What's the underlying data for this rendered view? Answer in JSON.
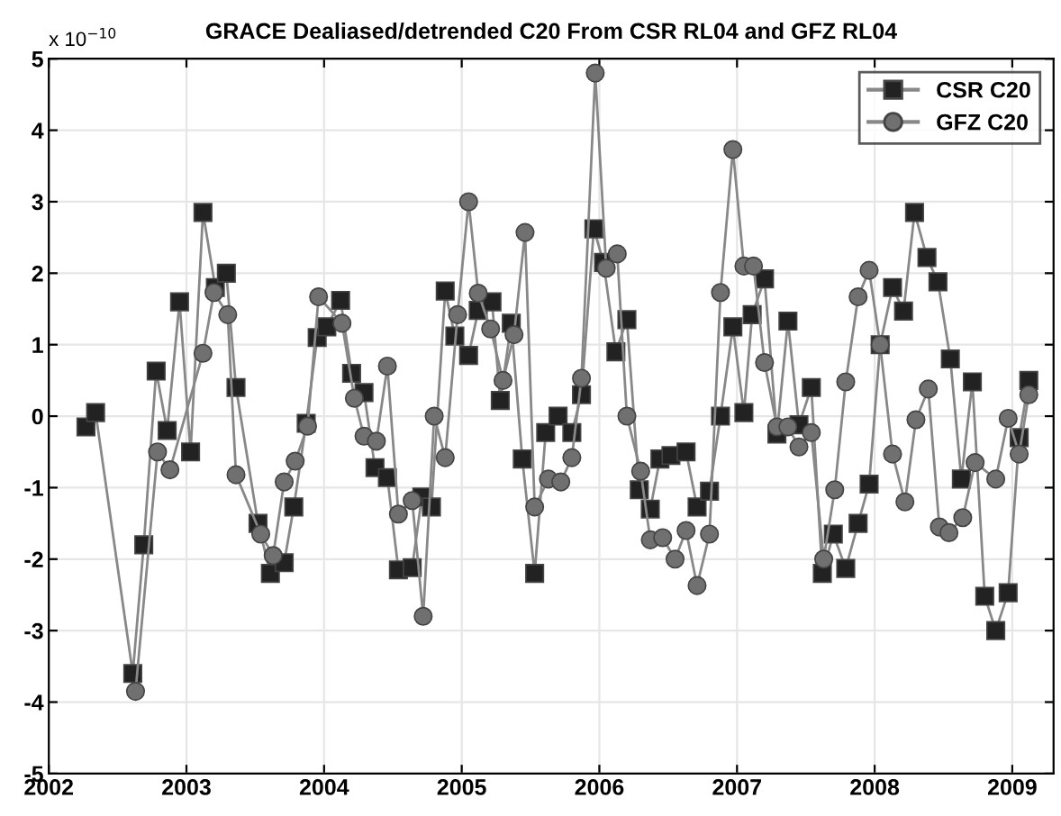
{
  "chart_data": {
    "type": "line",
    "title": "GRACE Dealiased/detrended C20 From CSR RL04 and GFZ RL04",
    "annotations": [
      "x 10$^{−10}$"
    ],
    "xlim": [
      2002,
      2009.3
    ],
    "xticks": [
      2002,
      2003,
      2004,
      2005,
      2006,
      2007,
      2008,
      2009
    ],
    "ylim": [
      -5,
      5
    ],
    "yticks": [
      -5,
      -4,
      -3,
      -2,
      -1,
      0,
      1,
      2,
      3,
      4,
      5
    ],
    "grid": true,
    "legend": "top right",
    "series": [
      {
        "name": "CSR C20",
        "color": "#222222",
        "marker": "square",
        "x": [
          2002.27,
          2002.34,
          2002.61,
          2002.69,
          2002.78,
          2002.86,
          2002.95,
          2003.03,
          2003.12,
          2003.21,
          2003.29,
          2003.36,
          2003.52,
          2003.61,
          2003.71,
          2003.78,
          2003.87,
          2003.95,
          2004.02,
          2004.12,
          2004.2,
          2004.29,
          2004.37,
          2004.46,
          2004.54,
          2004.64,
          2004.71,
          2004.78,
          2004.88,
          2004.95,
          2005.05,
          2005.12,
          2005.22,
          2005.28,
          2005.36,
          2005.44,
          2005.53,
          2005.61,
          2005.7,
          2005.8,
          2005.87,
          2005.96,
          2006.03,
          2006.12,
          2006.2,
          2006.29,
          2006.37,
          2006.44,
          2006.52,
          2006.63,
          2006.71,
          2006.8,
          2006.88,
          2006.97,
          2007.05,
          2007.11,
          2007.2,
          2007.29,
          2007.37,
          2007.45,
          2007.54,
          2007.62,
          2007.7,
          2007.79,
          2007.88,
          2007.96,
          2008.04,
          2008.13,
          2008.21,
          2008.29,
          2008.38,
          2008.46,
          2008.55,
          2008.63,
          2008.71,
          2008.8,
          2008.88,
          2008.97,
          2009.05,
          2009.12
        ],
        "values": [
          -0.15,
          0.05,
          -3.6,
          -1.8,
          0.63,
          -0.2,
          1.6,
          -0.5,
          2.85,
          1.8,
          2.0,
          0.4,
          -1.5,
          -2.2,
          -2.05,
          -1.27,
          -0.1,
          1.1,
          1.25,
          1.62,
          0.6,
          0.33,
          -0.72,
          -0.86,
          -2.15,
          -2.12,
          -1.13,
          -1.27,
          1.75,
          1.12,
          0.85,
          1.48,
          1.6,
          0.22,
          1.3,
          -0.6,
          -2.2,
          -0.23,
          0.0,
          -0.23,
          0.3,
          2.62,
          2.15,
          0.9,
          1.35,
          -1.03,
          -1.3,
          -0.6,
          -0.55,
          -0.5,
          -1.27,
          -1.05,
          0.0,
          1.25,
          0.05,
          1.42,
          1.92,
          -0.25,
          1.33,
          -0.12,
          0.4,
          -2.2,
          -1.65,
          -2.13,
          -1.5,
          -0.95,
          1.0,
          1.8,
          1.47,
          2.85,
          2.22,
          1.88,
          0.8,
          -0.88,
          0.48,
          -2.52,
          -3.0,
          -2.47,
          -0.3,
          0.5
        ]
      },
      {
        "name": "GFZ C20",
        "color": "#707070",
        "marker": "circle",
        "x": [
          2002.63,
          2002.79,
          2002.88,
          2003.12,
          2003.2,
          2003.3,
          2003.36,
          2003.54,
          2003.63,
          2003.71,
          2003.79,
          2003.88,
          2003.96,
          2004.13,
          2004.22,
          2004.29,
          2004.38,
          2004.46,
          2004.54,
          2004.64,
          2004.72,
          2004.8,
          2004.88,
          2004.97,
          2005.05,
          2005.12,
          2005.21,
          2005.3,
          2005.38,
          2005.46,
          2005.53,
          2005.63,
          2005.72,
          2005.8,
          2005.87,
          2005.97,
          2006.05,
          2006.13,
          2006.2,
          2006.3,
          2006.37,
          2006.46,
          2006.55,
          2006.63,
          2006.71,
          2006.8,
          2006.88,
          2006.97,
          2007.05,
          2007.12,
          2007.2,
          2007.29,
          2007.37,
          2007.45,
          2007.54,
          2007.63,
          2007.71,
          2007.79,
          2007.88,
          2007.96,
          2008.04,
          2008.13,
          2008.22,
          2008.3,
          2008.39,
          2008.47,
          2008.54,
          2008.64,
          2008.73,
          2008.88,
          2008.97,
          2009.05,
          2009.12
        ],
        "values": [
          -3.85,
          -0.5,
          -0.75,
          0.88,
          1.73,
          1.42,
          -0.82,
          -1.65,
          -1.95,
          -0.92,
          -0.63,
          -0.14,
          1.67,
          1.3,
          0.25,
          -0.28,
          -0.35,
          0.7,
          -1.37,
          -1.18,
          -2.8,
          0.0,
          -0.58,
          1.42,
          3.0,
          1.72,
          1.22,
          0.5,
          1.14,
          2.57,
          -1.27,
          -0.88,
          -0.92,
          -0.58,
          0.53,
          4.8,
          2.07,
          2.27,
          0.0,
          -0.77,
          -1.73,
          -1.7,
          -2.0,
          -1.6,
          -2.37,
          -1.65,
          1.73,
          3.73,
          2.1,
          2.1,
          0.75,
          -0.15,
          -0.15,
          -0.43,
          -0.23,
          -2.0,
          -1.03,
          0.48,
          1.67,
          2.04,
          1.0,
          -0.53,
          -1.2,
          -0.05,
          0.38,
          -1.55,
          -1.63,
          -1.42,
          -0.65,
          -0.88,
          -0.03,
          -0.53,
          0.3
        ]
      }
    ]
  }
}
